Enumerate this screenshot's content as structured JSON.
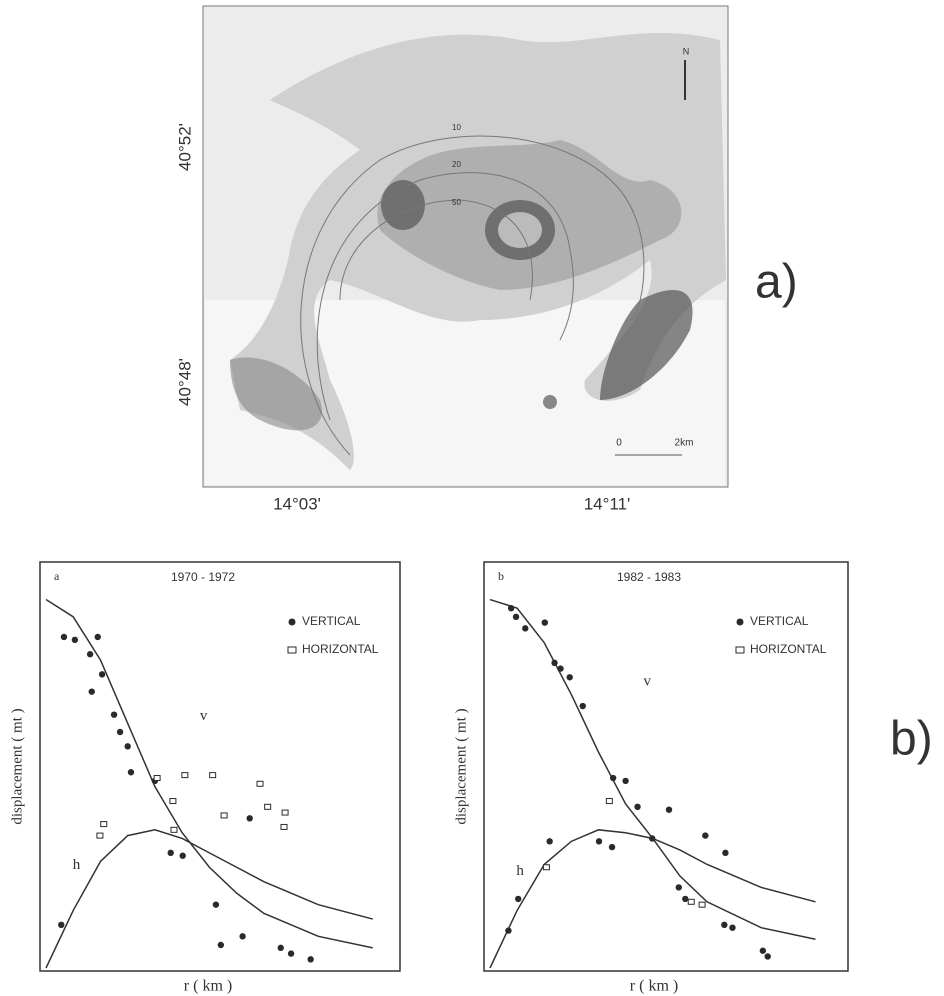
{
  "figure_labels": {
    "a": "a)",
    "b": "b)"
  },
  "map": {
    "lat_labels": [
      "40°52'",
      "40°48'"
    ],
    "lon_labels": [
      "14°03'",
      "14°11'"
    ],
    "scale": {
      "start": "0",
      "end": "2km"
    },
    "north": "N",
    "contour_labels": [
      "10",
      "20",
      "50"
    ]
  },
  "chart_data": [
    {
      "type": "scatter",
      "panel": "a",
      "title": "1970 - 1972",
      "x_label": "r ( km )",
      "y_label": "displacement ( mt )",
      "xlim": [
        0,
        6.5
      ],
      "ylim": [
        0,
        1.4
      ],
      "series": [
        {
          "name": "VERTICAL",
          "marker": "dot",
          "color": "#2a2a2a",
          "x": [
            0.33,
            0.53,
            0.81,
            0.95,
            1.03,
            0.84,
            1.25,
            1.36,
            1.5,
            1.56,
            2.0,
            2.29,
            2.51,
            3.12,
            3.21,
            3.61,
            4.31,
            4.5,
            4.86,
            3.74,
            0.28
          ],
          "values": [
            1.15,
            1.14,
            1.09,
            1.15,
            1.02,
            0.96,
            0.88,
            0.82,
            0.77,
            0.68,
            0.65,
            0.4,
            0.39,
            0.22,
            0.08,
            0.11,
            0.07,
            0.05,
            0.03,
            0.52,
            0.15
          ]
        },
        {
          "name": "HORIZONTAL",
          "marker": "square",
          "color": "#2a2a2a",
          "x": [
            1.06,
            0.99,
            2.04,
            2.35,
            2.55,
            3.06,
            3.93,
            3.27,
            4.07,
            4.39,
            4.37,
            2.33
          ],
          "values": [
            0.5,
            0.46,
            0.66,
            0.48,
            0.67,
            0.67,
            0.64,
            0.53,
            0.56,
            0.54,
            0.49,
            0.58
          ]
        }
      ],
      "curves": [
        {
          "name": "v",
          "x": [
            0,
            0.5,
            1,
            1.5,
            2,
            2.5,
            3,
            3.5,
            4,
            5,
            6
          ],
          "values": [
            1.28,
            1.22,
            1.07,
            0.85,
            0.63,
            0.47,
            0.35,
            0.26,
            0.19,
            0.11,
            0.07
          ]
        },
        {
          "name": "h",
          "x": [
            0,
            0.5,
            1,
            1.5,
            2,
            2.5,
            3,
            3.5,
            4,
            5,
            6
          ],
          "values": [
            0,
            0.2,
            0.37,
            0.46,
            0.48,
            0.45,
            0.4,
            0.35,
            0.3,
            0.22,
            0.17
          ]
        }
      ]
    },
    {
      "type": "scatter",
      "panel": "b",
      "title": "1982 - 1983",
      "x_label": "r ( km )",
      "y_label": "displacement ( mt )",
      "xlim": [
        0,
        6.6
      ],
      "ylim": [
        0,
        1.4
      ],
      "series": [
        {
          "name": "VERTICAL",
          "marker": "dot",
          "color": "#2a2a2a",
          "x": [
            0.39,
            0.48,
            0.65,
            1.01,
            1.19,
            1.3,
            1.47,
            1.71,
            2.27,
            2.5,
            2.72,
            3.3,
            1.1,
            2.01,
            2.25,
            2.99,
            3.97,
            4.34,
            3.48,
            3.6,
            4.32,
            4.47,
            5.03,
            5.12,
            0.34,
            0.52
          ],
          "values": [
            1.25,
            1.22,
            1.18,
            1.2,
            1.06,
            1.04,
            1.01,
            0.91,
            0.66,
            0.65,
            0.56,
            0.55,
            0.44,
            0.44,
            0.42,
            0.45,
            0.46,
            0.4,
            0.28,
            0.24,
            0.15,
            0.14,
            0.06,
            0.04,
            0.13,
            0.24
          ]
        },
        {
          "name": "HORIZONTAL",
          "marker": "square",
          "color": "#2a2a2a",
          "x": [
            2.2,
            1.04,
            3.71,
            3.91
          ],
          "values": [
            0.58,
            0.35,
            0.23,
            0.22
          ]
        }
      ],
      "curves": [
        {
          "name": "v",
          "x": [
            0,
            0.5,
            1,
            1.5,
            2,
            2.5,
            3,
            3.5,
            4,
            5,
            6
          ],
          "values": [
            1.28,
            1.25,
            1.13,
            0.95,
            0.75,
            0.57,
            0.45,
            0.32,
            0.23,
            0.14,
            0.1
          ]
        },
        {
          "name": "h",
          "x": [
            0,
            0.5,
            1,
            1.5,
            2,
            2.5,
            3,
            3.5,
            4,
            5,
            6
          ],
          "values": [
            0,
            0.2,
            0.36,
            0.44,
            0.48,
            0.47,
            0.45,
            0.41,
            0.36,
            0.28,
            0.23
          ]
        }
      ]
    }
  ]
}
